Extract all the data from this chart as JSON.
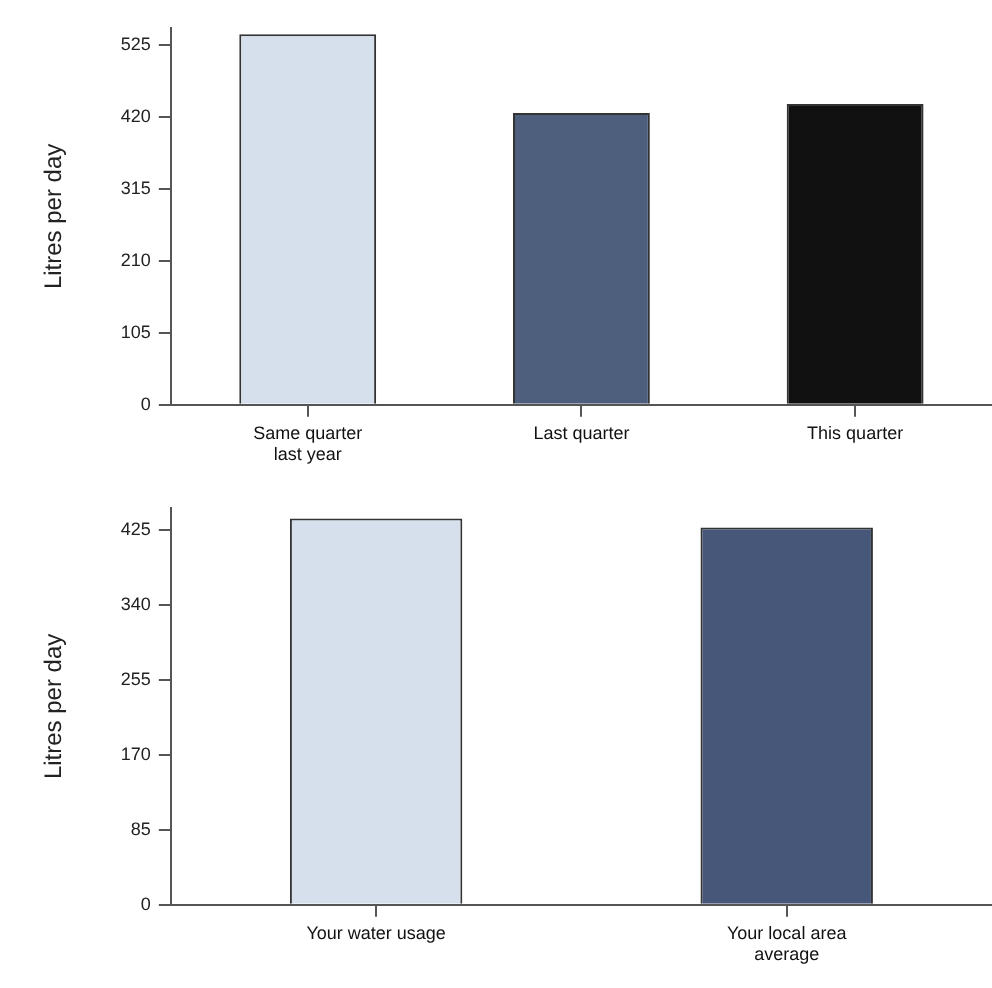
{
  "chart_data": [
    {
      "type": "bar",
      "ylabel": "Litres per day",
      "categories": [
        "Same quarter last year",
        "Last quarter",
        "This quarter"
      ],
      "values": [
        541,
        426,
        439
      ],
      "colors": [
        "#d6e0ec",
        "#4e5f7e",
        "#111111"
      ],
      "ylim": [
        0,
        550
      ],
      "yticks": [
        0,
        105,
        210,
        315,
        420,
        525
      ],
      "grid": false,
      "legend": false
    },
    {
      "type": "bar",
      "ylabel": "Litres per day",
      "categories": [
        "Your water usage",
        "Your local area average"
      ],
      "values": [
        438,
        428
      ],
      "colors": [
        "#d6e0ec",
        "#46577a"
      ],
      "ylim": [
        0,
        450
      ],
      "yticks": [
        0,
        85,
        170,
        255,
        340,
        425
      ],
      "grid": false,
      "legend": false
    }
  ]
}
